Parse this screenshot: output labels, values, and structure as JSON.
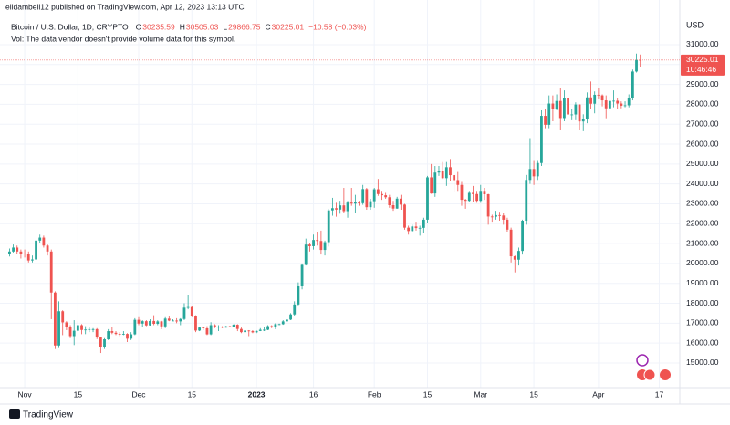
{
  "header": {
    "publisher": "elidambell12 published on TradingView.com, Apr 12, 2023 13:13 UTC",
    "footer": "TradingView"
  },
  "chart_data": {
    "type": "candlestick",
    "symbol": "Bitcoin / U.S. Dollar, 1D, CRYPTO",
    "ohlc_letters": [
      "O",
      "H",
      "L",
      "C"
    ],
    "change_label": "−10.58 (−0.03%)",
    "vol_note": "Vol: The data vendor doesn't provide volume data for this symbol.",
    "y_axis_label": "USD",
    "countdown": "10:46:46",
    "up_color": "#26a69a",
    "down_color": "#ef5350",
    "grid": true,
    "xlim": [
      -1.3,
      176.4
    ],
    "ylim": [
      13760,
      31870
    ],
    "xticks": [
      {
        "value": 4,
        "label": "Nov"
      },
      {
        "value": 18,
        "label": "15"
      },
      {
        "value": 34,
        "label": "Dec"
      },
      {
        "value": 48,
        "label": "15"
      },
      {
        "value": 65,
        "label": "2023"
      },
      {
        "value": 80,
        "label": "16"
      },
      {
        "value": 96,
        "label": "Feb"
      },
      {
        "value": 110,
        "label": "15"
      },
      {
        "value": 124,
        "label": "Mar"
      },
      {
        "value": 138,
        "label": "15"
      },
      {
        "value": 155,
        "label": "Apr"
      },
      {
        "value": 171,
        "label": "17"
      }
    ],
    "yticks": [
      {
        "value": 15000,
        "label": "15000.00"
      },
      {
        "value": 16000,
        "label": "16000.00"
      },
      {
        "value": 17000,
        "label": "17000.00"
      },
      {
        "value": 18000,
        "label": "18000.00"
      },
      {
        "value": 19000,
        "label": "19000.00"
      },
      {
        "value": 20000,
        "label": "20000.00"
      },
      {
        "value": 21000,
        "label": "21000.00"
      },
      {
        "value": 22000,
        "label": "22000.00"
      },
      {
        "value": 23000,
        "label": "23000.00"
      },
      {
        "value": 24000,
        "label": "24000.00"
      },
      {
        "value": 25000,
        "label": "25000.00"
      },
      {
        "value": 26000,
        "label": "26000.00"
      },
      {
        "value": 27000,
        "label": "27000.00"
      },
      {
        "value": 28000,
        "label": "28000.00"
      },
      {
        "value": 29000,
        "label": "29000.00"
      },
      {
        "value": 30000,
        "label": "30000.00"
      },
      {
        "value": 31000,
        "label": "31000.00"
      }
    ],
    "open": [
      20500,
      20600,
      20800,
      20600,
      20500,
      20480,
      20150,
      20200,
      21150,
      21300,
      20900,
      20600,
      18540,
      15880,
      17600,
      17040,
      16800,
      16350,
      16620,
      16900,
      16660,
      16680,
      16700,
      16700,
      16280,
      15780,
      16190,
      16600,
      16520,
      16460,
      16440,
      16460,
      16220,
      16440,
      17170,
      16980,
      17100,
      16890,
      17110,
      16970,
      17090,
      16840,
      17230,
      17130,
      17130,
      17090,
      17210,
      17780,
      17810,
      17360,
      16630,
      16780,
      16740,
      16440,
      16900,
      16820,
      16820,
      16780,
      16840,
      16830,
      16920,
      16710,
      16550,
      16630,
      16600,
      16540,
      16610,
      16670,
      16670,
      16850,
      16830,
      16950,
      16950,
      17090,
      17180,
      17440,
      17940,
      18850,
      19930,
      20950,
      20870,
      21180,
      21130,
      20680,
      21070,
      22670,
      22780,
      22710,
      22920,
      22630,
      23060,
      23010,
      23080,
      23030,
      23740,
      22830,
      23130,
      23730,
      23490,
      23430,
      23330,
      22930,
      22760,
      23260,
      22960,
      21800,
      21630,
      21860,
      21780,
      21790,
      22200,
      24330,
      23520,
      24570,
      24630,
      24290,
      24840,
      24440,
      24190,
      23950,
      23200,
      23150,
      23550,
      23490,
      23150,
      23650,
      23480,
      22360,
      22350,
      22430,
      22410,
      22200,
      21700,
      20360,
      20190,
      20630,
      22150,
      24200,
      24750,
      24380,
      25050,
      27420,
      26970,
      28040,
      27770,
      28170,
      27310,
      28330,
      27490,
      27490,
      27990,
      27140,
      27270,
      28350,
      28030,
      28480,
      28450,
      28200,
      27800,
      28170,
      28180,
      28040,
      27930,
      27950,
      28330,
      29650,
      30235.59
    ],
    "high": [
      20750,
      20950,
      20900,
      20700,
      20700,
      20600,
      20400,
      21300,
      21450,
      21400,
      21000,
      20700,
      18600,
      18100,
      17650,
      17100,
      16900,
      17150,
      17100,
      16950,
      16850,
      16800,
      16750,
      16750,
      16300,
      16250,
      16700,
      16800,
      16600,
      16550,
      16600,
      16500,
      16550,
      17250,
      17300,
      17150,
      17150,
      17200,
      17400,
      17150,
      17120,
      17300,
      17350,
      17200,
      17250,
      17250,
      18000,
      18400,
      17850,
      17400,
      16800,
      16800,
      16850,
      17050,
      16950,
      16900,
      16850,
      16870,
      16880,
      16950,
      16950,
      16780,
      16650,
      16650,
      16650,
      16630,
      16750,
      16800,
      16900,
      16900,
      17000,
      16980,
      17150,
      17400,
      17500,
      18100,
      19050,
      20000,
      21250,
      21050,
      21450,
      21600,
      21650,
      21150,
      22750,
      23300,
      23050,
      23150,
      23800,
      23150,
      23800,
      23450,
      23150,
      23950,
      23800,
      23250,
      23800,
      24250,
      23650,
      23550,
      23450,
      23150,
      23350,
      23450,
      23000,
      21900,
      21950,
      22100,
      21900,
      22300,
      24400,
      25000,
      24900,
      24900,
      25100,
      25100,
      25250,
      24500,
      24600,
      24100,
      23250,
      23650,
      23900,
      23650,
      23950,
      23800,
      23500,
      22450,
      22650,
      22600,
      22550,
      22300,
      21800,
      20400,
      20800,
      22200,
      24450,
      26300,
      25200,
      25200,
      27700,
      27750,
      28450,
      28450,
      28500,
      28800,
      28700,
      28400,
      27750,
      28100,
      28000,
      27500,
      28600,
      29150,
      28650,
      28800,
      28500,
      28450,
      28400,
      28700,
      28300,
      28150,
      28150,
      28500,
      29750,
      30550,
      30505.03
    ],
    "low": [
      20350,
      20550,
      20500,
      20250,
      20300,
      20050,
      20050,
      20150,
      21050,
      20800,
      20400,
      17200,
      15700,
      15750,
      16400,
      16650,
      16250,
      15900,
      16550,
      16450,
      16450,
      16550,
      16550,
      16200,
      15500,
      15700,
      16150,
      16450,
      16400,
      16350,
      16400,
      16050,
      16150,
      16400,
      16900,
      16800,
      16850,
      16880,
      16900,
      16900,
      16700,
      16750,
      17100,
      17100,
      17000,
      16900,
      17150,
      17700,
      17300,
      16550,
      16600,
      16650,
      16400,
      16400,
      16750,
      16600,
      16750,
      16770,
      16800,
      16800,
      16600,
      16500,
      16500,
      16350,
      16500,
      16500,
      16600,
      16600,
      16650,
      16750,
      16700,
      16900,
      16920,
      17050,
      17150,
      17350,
      17900,
      18700,
      19900,
      20600,
      20700,
      20900,
      20450,
      20400,
      20850,
      22400,
      22350,
      22500,
      22550,
      22300,
      22900,
      22550,
      22900,
      22950,
      22700,
      22700,
      22800,
      23400,
      23200,
      23250,
      22800,
      22650,
      22750,
      22700,
      21700,
      21450,
      21600,
      21650,
      21400,
      21550,
      22050,
      23500,
      23350,
      24400,
      24250,
      23900,
      24150,
      23600,
      23650,
      22900,
      22750,
      23100,
      23100,
      23050,
      23050,
      23200,
      21950,
      22100,
      22200,
      22150,
      21950,
      21600,
      20050,
      19550,
      19900,
      20450,
      21950,
      24000,
      23950,
      24200,
      24900,
      26800,
      26800,
      27150,
      27700,
      26700,
      27150,
      27150,
      27200,
      27200,
      26700,
      26650,
      27050,
      27750,
      27550,
      28250,
      27900,
      27300,
      27650,
      27850,
      27750,
      27800,
      27850,
      27850,
      28200,
      29600,
      29866.75
    ],
    "close": [
      20600,
      20800,
      20600,
      20500,
      20480,
      20150,
      20200,
      21150,
      21300,
      20900,
      20600,
      18540,
      15880,
      17600,
      17040,
      16800,
      16350,
      16620,
      16900,
      16660,
      16680,
      16700,
      16700,
      16280,
      15780,
      16190,
      16600,
      16520,
      16460,
      16440,
      16460,
      16220,
      16440,
      17170,
      16980,
      17100,
      16890,
      17110,
      16970,
      17090,
      16840,
      17230,
      17130,
      17130,
      17090,
      17210,
      17780,
      17810,
      17360,
      16630,
      16780,
      16740,
      16440,
      16900,
      16820,
      16820,
      16780,
      16840,
      16830,
      16920,
      16710,
      16550,
      16630,
      16600,
      16540,
      16610,
      16670,
      16670,
      16850,
      16830,
      16950,
      16950,
      17090,
      17180,
      17440,
      17940,
      18850,
      19930,
      20950,
      20870,
      21180,
      21130,
      20680,
      21070,
      22670,
      22780,
      22710,
      22920,
      22630,
      23060,
      23010,
      23080,
      23030,
      23740,
      22830,
      23130,
      23730,
      23490,
      23430,
      23330,
      22930,
      22760,
      23260,
      22960,
      21800,
      21630,
      21860,
      21780,
      21790,
      22200,
      24330,
      23520,
      24570,
      24630,
      24290,
      24840,
      24440,
      24190,
      23950,
      23200,
      23150,
      23550,
      23490,
      23150,
      23650,
      23480,
      22360,
      22350,
      22430,
      22410,
      22200,
      21700,
      20360,
      20190,
      20630,
      22150,
      24200,
      24750,
      24380,
      25050,
      27420,
      26970,
      28040,
      27770,
      28170,
      27310,
      28330,
      27490,
      27490,
      27990,
      27140,
      27270,
      28350,
      28030,
      28480,
      28450,
      28200,
      27800,
      28170,
      28180,
      28040,
      27930,
      27950,
      28330,
      29650,
      30230,
      30225.01
    ]
  }
}
